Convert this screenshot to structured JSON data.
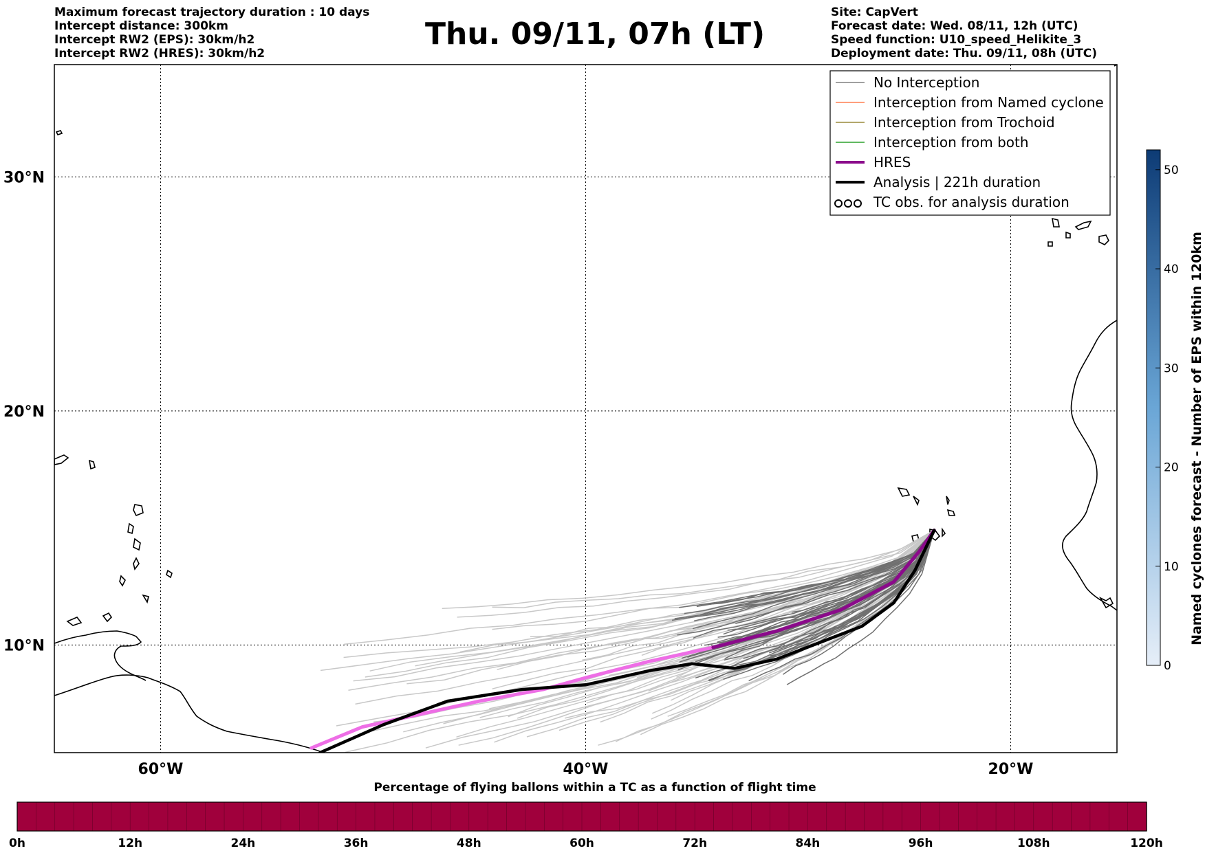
{
  "header_left": [
    "Maximum forecast trajectory duration : 10 days",
    "Intercept distance: 300km",
    "Intercept RW2 (EPS):  30km/h2",
    "Intercept RW2 (HRES): 30km/h2"
  ],
  "title": "Thu. 09/11, 07h (LT)",
  "header_right": [
    "Site: CapVert",
    "Forecast date: Wed. 08/11, 12h (UTC)",
    "Speed function: U10_speed_Helikite_3",
    "Deployment date: Thu. 09/11, 08h (UTC)"
  ],
  "map": {
    "lon_range": [
      -65,
      -15
    ],
    "lat_range": [
      5.4,
      34.8
    ],
    "lon_ticks": [
      {
        "v": -60,
        "label": "60°W"
      },
      {
        "v": -40,
        "label": "40°W"
      },
      {
        "v": -20,
        "label": "20°W"
      }
    ],
    "lat_ticks": [
      {
        "v": 10,
        "label": "10°N"
      },
      {
        "v": 20,
        "label": "20°N"
      },
      {
        "v": 30,
        "label": "30°N"
      }
    ],
    "gridlines": true,
    "launch_site": {
      "lon": -23.6,
      "lat": 14.9
    },
    "hres_track": [
      [
        -52.9,
        5.6
      ],
      [
        -50.5,
        6.5
      ],
      [
        -48,
        7
      ],
      [
        -45,
        7.6
      ],
      [
        -42,
        8.1
      ],
      [
        -40,
        8.6
      ],
      [
        -37,
        9.3
      ],
      [
        -34,
        9.9
      ],
      [
        -31,
        10.6
      ],
      [
        -28,
        11.5
      ],
      [
        -25.5,
        12.7
      ],
      [
        -24.3,
        14
      ],
      [
        -23.6,
        14.9
      ]
    ],
    "analysis_track": [
      [
        -52.5,
        5.4
      ],
      [
        -49.5,
        6.6
      ],
      [
        -46.5,
        7.6
      ],
      [
        -43,
        8.1
      ],
      [
        -40,
        8.3
      ],
      [
        -37,
        8.9
      ],
      [
        -35,
        9.2
      ],
      [
        -33,
        9.0
      ],
      [
        -31,
        9.4
      ],
      [
        -29,
        10.1
      ],
      [
        -27,
        10.8
      ],
      [
        -25.5,
        11.8
      ],
      [
        -24.5,
        13.2
      ],
      [
        -23.6,
        14.9
      ]
    ],
    "colors": {
      "no_interception": "#808080",
      "named_cyclone": "#ff7f50",
      "trochoid": "#9a8a3a",
      "both": "#2ca02c",
      "hres_near": "#8b0a8b",
      "hres_far": "#ee6ee6",
      "analysis": "#000000"
    }
  },
  "legend": {
    "placement": "top-right",
    "entries": [
      {
        "label": "No Interception",
        "color": "#808080",
        "style": "thin"
      },
      {
        "label": "Interception from Named cyclone",
        "color": "#ff7f50",
        "style": "thin"
      },
      {
        "label": "Interception from Trochoid",
        "color": "#9a8a3a",
        "style": "thin"
      },
      {
        "label": "Interception from both",
        "color": "#2ca02c",
        "style": "thin"
      },
      {
        "label": "HRES",
        "color": "#8b0a8b",
        "style": "thick"
      },
      {
        "label": "Analysis | 221h duration",
        "color": "#000000",
        "style": "thick"
      },
      {
        "label": "TC obs. for analysis duration",
        "color": "#000000",
        "style": "symbol"
      }
    ]
  },
  "colorbar_right": {
    "label": "Named cyclones forecast - Number of EPS within 120km",
    "range": [
      0,
      52
    ],
    "ticks": [
      0,
      10,
      20,
      30,
      40,
      50
    ],
    "color_low": "#e6eef8",
    "color_high": "#0d3b75"
  },
  "bottom_bar": {
    "title": "Percentage of flying ballons within a TC as a function of flight time",
    "ticks": [
      "0h",
      "12h",
      "24h",
      "36h",
      "48h",
      "60h",
      "72h",
      "84h",
      "96h",
      "108h",
      "120h"
    ],
    "steps": 60,
    "fill_color": "#a0003c"
  }
}
